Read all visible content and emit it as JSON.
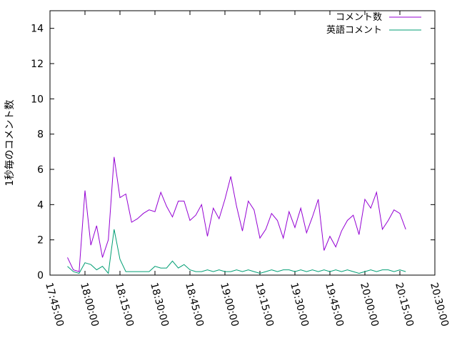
{
  "chart_data": {
    "type": "line",
    "title": "",
    "xlabel": "",
    "ylabel": "1秒毎のコメント数",
    "ylim": [
      0,
      15
    ],
    "yticks": [
      0,
      2,
      4,
      6,
      8,
      10,
      12,
      14
    ],
    "x_start": "17:45:00",
    "x_step_seconds": 150,
    "xlim": [
      "17:45:00",
      "20:30:00"
    ],
    "xticks": [
      "17:45:00",
      "18:00:00",
      "18:15:00",
      "18:30:00",
      "18:45:00",
      "19:00:00",
      "19:15:00",
      "19:30:00",
      "19:45:00",
      "20:00:00",
      "20:15:00",
      "20:30:00"
    ],
    "grid": false,
    "legend": "top-right",
    "series": [
      {
        "name": "コメント数",
        "color": "#9400d3",
        "times": [
          "17:52:30",
          "17:55:00",
          "17:57:30",
          "18:00:00",
          "18:02:30",
          "18:05:00",
          "18:07:30",
          "18:10:00",
          "18:12:30",
          "18:15:00",
          "18:17:30",
          "18:20:00",
          "18:22:30",
          "18:25:00",
          "18:27:30",
          "18:30:00",
          "18:32:30",
          "18:35:00",
          "18:37:30",
          "18:40:00",
          "18:42:30",
          "18:45:00",
          "18:47:30",
          "18:50:00",
          "18:52:30",
          "18:55:00",
          "18:57:30",
          "19:00:00",
          "19:02:30",
          "19:05:00",
          "19:07:30",
          "19:10:00",
          "19:12:30",
          "19:15:00",
          "19:17:30",
          "19:20:00",
          "19:22:30",
          "19:25:00",
          "19:27:30",
          "19:30:00",
          "19:32:30",
          "19:35:00",
          "19:37:30",
          "19:40:00",
          "19:42:30",
          "19:45:00",
          "19:47:30",
          "19:50:00",
          "19:52:30",
          "19:55:00",
          "19:57:30",
          "20:00:00",
          "20:02:30",
          "20:05:00",
          "20:07:30",
          "20:10:00",
          "20:12:30",
          "20:15:00",
          "20:17:30"
        ],
        "values": [
          1.0,
          0.3,
          0.2,
          4.8,
          1.7,
          2.8,
          1.0,
          2.0,
          6.7,
          4.4,
          4.6,
          3.0,
          3.2,
          3.5,
          3.7,
          3.6,
          4.7,
          3.9,
          3.3,
          4.2,
          4.2,
          3.1,
          3.4,
          4.0,
          2.2,
          3.8,
          3.2,
          4.3,
          5.6,
          3.9,
          2.5,
          4.2,
          3.7,
          2.1,
          2.6,
          3.5,
          3.1,
          2.1,
          3.6,
          2.7,
          3.8,
          2.4,
          3.3,
          4.3,
          1.4,
          2.2,
          1.6,
          2.5,
          3.1,
          3.4,
          2.3,
          4.3,
          3.8,
          4.7,
          2.6,
          3.1,
          3.7,
          3.5,
          2.6
        ]
      },
      {
        "name": "英語コメント",
        "color": "#009e73",
        "times": [
          "17:52:30",
          "17:55:00",
          "17:57:30",
          "18:00:00",
          "18:02:30",
          "18:05:00",
          "18:07:30",
          "18:10:00",
          "18:12:30",
          "18:15:00",
          "18:17:30",
          "18:20:00",
          "18:22:30",
          "18:25:00",
          "18:27:30",
          "18:30:00",
          "18:32:30",
          "18:35:00",
          "18:37:30",
          "18:40:00",
          "18:42:30",
          "18:45:00",
          "18:47:30",
          "18:50:00",
          "18:52:30",
          "18:55:00",
          "18:57:30",
          "19:00:00",
          "19:02:30",
          "19:05:00",
          "19:07:30",
          "19:10:00",
          "19:12:30",
          "19:15:00",
          "19:17:30",
          "19:20:00",
          "19:22:30",
          "19:25:00",
          "19:27:30",
          "19:30:00",
          "19:32:30",
          "19:35:00",
          "19:37:30",
          "19:40:00",
          "19:42:30",
          "19:45:00",
          "19:47:30",
          "19:50:00",
          "19:52:30",
          "19:55:00",
          "19:57:30",
          "20:00:00",
          "20:02:30",
          "20:05:00",
          "20:07:30",
          "20:10:00",
          "20:12:30",
          "20:15:00",
          "20:17:30"
        ],
        "values": [
          0.5,
          0.2,
          0.1,
          0.7,
          0.6,
          0.3,
          0.5,
          0.1,
          2.6,
          0.9,
          0.2,
          0.2,
          0.2,
          0.2,
          0.2,
          0.5,
          0.4,
          0.4,
          0.8,
          0.4,
          0.6,
          0.3,
          0.2,
          0.2,
          0.3,
          0.2,
          0.3,
          0.2,
          0.2,
          0.3,
          0.2,
          0.3,
          0.2,
          0.1,
          0.2,
          0.3,
          0.2,
          0.3,
          0.3,
          0.2,
          0.3,
          0.2,
          0.3,
          0.2,
          0.3,
          0.2,
          0.3,
          0.2,
          0.3,
          0.2,
          0.1,
          0.2,
          0.3,
          0.2,
          0.3,
          0.3,
          0.2,
          0.3,
          0.2
        ]
      }
    ]
  }
}
